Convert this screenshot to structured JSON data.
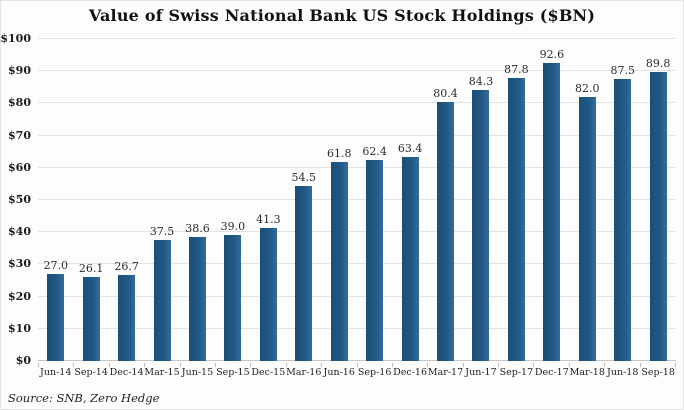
{
  "source_note": "Source: SNB, Zero Hedge",
  "colors": {
    "bar": "#215A86",
    "bar_edge_dark": "#1B4E76",
    "bar_edge_light": "#336C9C",
    "grid": "#E2E2E2",
    "axis": "#C6C6C6",
    "tick": "#BDBDBD",
    "title_text": "#111111",
    "label_text": "#2B2B2B"
  },
  "chart_data": {
    "type": "bar",
    "title": "Value of Swiss National Bank US Stock Holdings ($BN)",
    "categories": [
      "Jun-14",
      "Sep-14",
      "Dec-14",
      "Mar-15",
      "Jun-15",
      "Sep-15",
      "Dec-15",
      "Mar-16",
      "Jun-16",
      "Sep-16",
      "Dec-16",
      "Mar-17",
      "Jun-17",
      "Sep-17",
      "Dec-17",
      "Mar-18",
      "Jun-18",
      "Sep-18"
    ],
    "values": [
      27.0,
      26.1,
      26.7,
      37.5,
      38.6,
      39.0,
      41.3,
      54.5,
      61.8,
      62.4,
      63.4,
      80.4,
      84.3,
      87.8,
      92.6,
      82.0,
      87.5,
      89.8
    ],
    "data_label_texts": [
      "27.0",
      "26.1",
      "26.7",
      "37.5",
      "38.6",
      "39.0",
      "41.3",
      "54.5",
      "61.8",
      "62.4",
      "63.4",
      "80.4",
      "84.3",
      "87.8",
      "92.6",
      "82.0",
      "87.5",
      "89.8"
    ],
    "xlabel": "",
    "ylabel": "",
    "ylim": [
      0,
      100
    ],
    "ytick_step": 10,
    "ytick_labels": [
      "$0",
      "$10",
      "$20",
      "$30",
      "$40",
      "$50",
      "$60",
      "$70",
      "$80",
      "$90",
      "$100"
    ],
    "grid": true,
    "legend": false,
    "data_labels": true,
    "source": "Source: SNB, Zero Hedge"
  }
}
